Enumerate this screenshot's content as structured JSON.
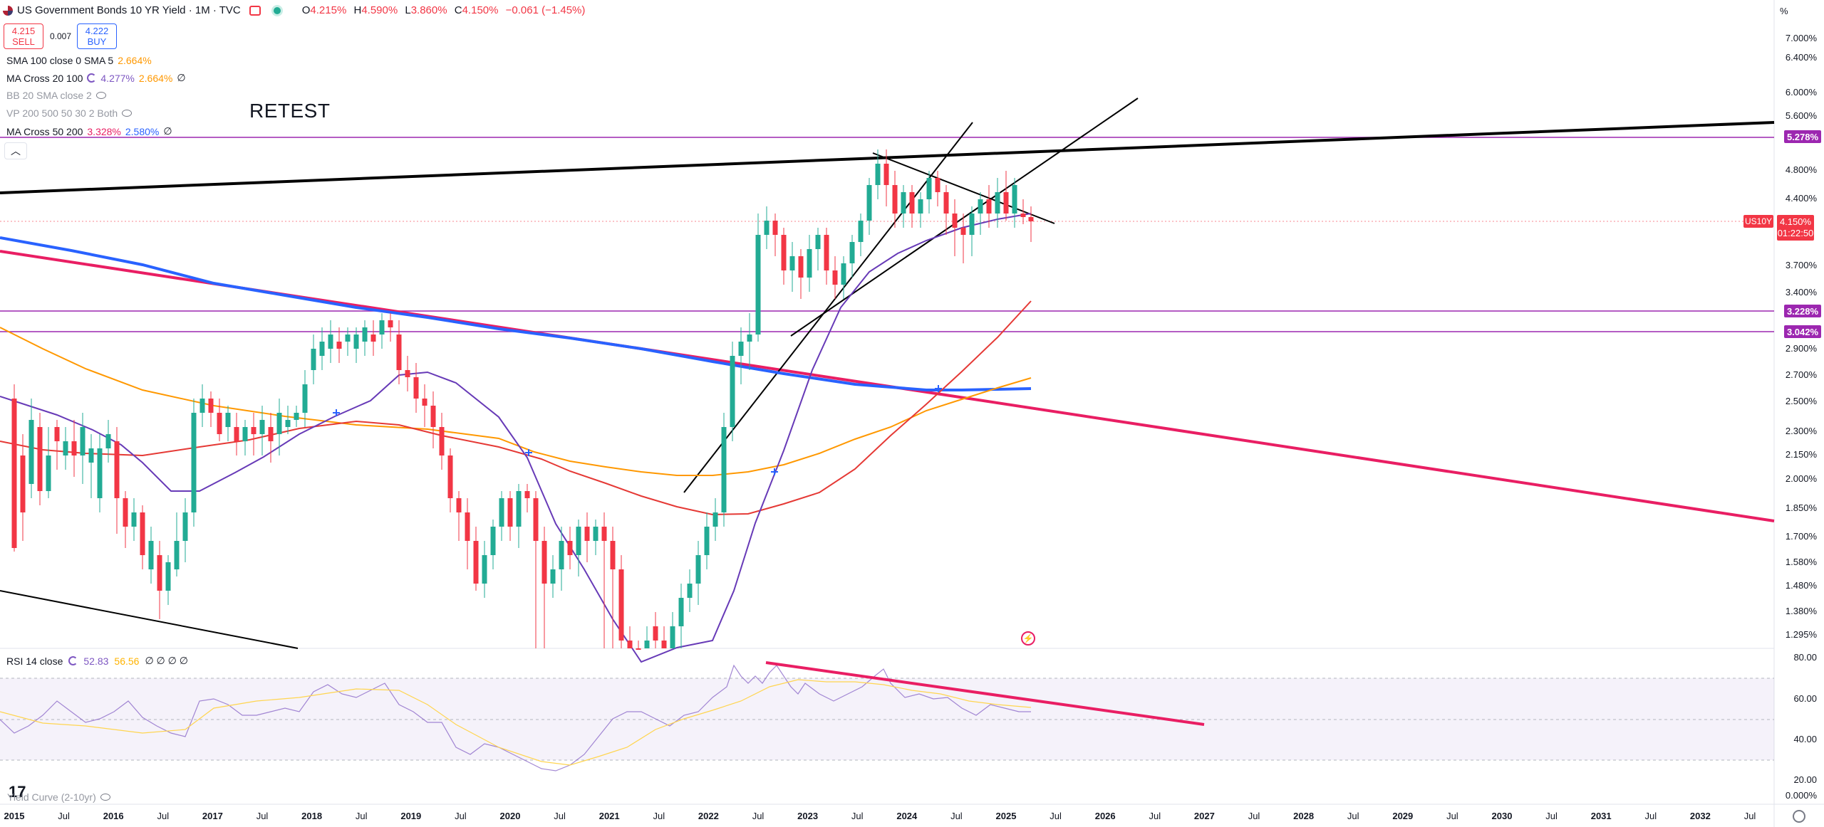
{
  "header": {
    "title": "US Government Bonds 10 YR Yield · 1M · TVC",
    "ohlc": {
      "o_label": "O",
      "o": "4.215%",
      "h_label": "H",
      "h": "4.590%",
      "l_label": "L",
      "l": "3.860%",
      "c_label": "C",
      "c": "4.150%",
      "change": "−0.061 (−1.45%)"
    }
  },
  "trade": {
    "sell_price": "4.215",
    "sell_label": "SELL",
    "spread": "0.007",
    "buy_price": "4.222",
    "buy_label": "BUY"
  },
  "indicators": [
    {
      "name": "SMA 100 close 0 SMA 5",
      "v1": "2.664%",
      "v2": ""
    },
    {
      "name": "MA Cross 20 100",
      "v1": "4.277%",
      "v2": "2.664%",
      "v3": "∅"
    },
    {
      "name": "BB 20 SMA close 2",
      "v1": "",
      "v2": ""
    },
    {
      "name": "VP 200 500 50 30 2 Both",
      "v1": "",
      "v2": ""
    },
    {
      "name": "MA Cross 50 200",
      "v1": "3.328%",
      "v2": "2.580%",
      "v3": "∅"
    }
  ],
  "annotation_text": "RETEST",
  "price_axis": {
    "unit": "%",
    "ticks": [
      "7.000%",
      "6.400%",
      "6.000%",
      "5.600%",
      "4.800%",
      "4.400%",
      "3.700%",
      "3.400%",
      "2.900%",
      "2.700%",
      "2.500%",
      "2.300%",
      "2.150%",
      "2.000%",
      "1.850%",
      "1.700%",
      "1.580%",
      "1.480%",
      "1.380%",
      "1.295%"
    ],
    "tags": [
      {
        "value": "5.278%",
        "color": "#9c27b0"
      },
      {
        "value": "3.228%",
        "color": "#9c27b0"
      },
      {
        "value": "3.042%",
        "color": "#9c27b0"
      }
    ],
    "last_symbol": "US10Y",
    "last_price": "4.150%",
    "countdown": "01:22:50"
  },
  "rsi": {
    "label": "RSI 14 close",
    "value": "52.83",
    "ma": "56.56",
    "rest": "∅ ∅ ∅ ∅",
    "ticks": [
      "80.00",
      "60.00",
      "40.00",
      "20.00"
    ]
  },
  "yield_curve": {
    "label": "Yield Curve (2-10yr)",
    "tick": "0.000%"
  },
  "time_axis": {
    "labels": [
      {
        "t": "2015",
        "year": true
      },
      {
        "t": "Jul",
        "year": false
      },
      {
        "t": "2016",
        "year": true
      },
      {
        "t": "Jul",
        "year": false
      },
      {
        "t": "2017",
        "year": true
      },
      {
        "t": "Jul",
        "year": false
      },
      {
        "t": "2018",
        "year": true
      },
      {
        "t": "Jul",
        "year": false
      },
      {
        "t": "2019",
        "year": true
      },
      {
        "t": "Jul",
        "year": false
      },
      {
        "t": "2020",
        "year": true
      },
      {
        "t": "Jul",
        "year": false
      },
      {
        "t": "2021",
        "year": true
      },
      {
        "t": "Jul",
        "year": false
      },
      {
        "t": "2022",
        "year": true
      },
      {
        "t": "Jul",
        "year": false
      },
      {
        "t": "2023",
        "year": true
      },
      {
        "t": "Jul",
        "year": false
      },
      {
        "t": "2024",
        "year": true
      },
      {
        "t": "Jul",
        "year": false
      },
      {
        "t": "2025",
        "year": true
      },
      {
        "t": "Jul",
        "year": false
      },
      {
        "t": "2026",
        "year": true
      },
      {
        "t": "Jul",
        "year": false
      },
      {
        "t": "2027",
        "year": true
      },
      {
        "t": "Jul",
        "year": false
      },
      {
        "t": "2028",
        "year": true
      },
      {
        "t": "Jul",
        "year": false
      },
      {
        "t": "2029",
        "year": true
      },
      {
        "t": "Jul",
        "year": false
      },
      {
        "t": "2030",
        "year": true
      },
      {
        "t": "Jul",
        "year": false
      },
      {
        "t": "2031",
        "year": true
      },
      {
        "t": "Jul",
        "year": false
      },
      {
        "t": "2032",
        "year": true
      },
      {
        "t": "Jul",
        "year": false
      }
    ]
  },
  "colors": {
    "up": "#22ab94",
    "down": "#f23645",
    "sma100": "#ff9800",
    "ma20": "#7e57c2",
    "ma50": "#e91e63",
    "ma200": "#2962ff",
    "trend_pink": "#e91e63",
    "hline": "#9c27b0"
  },
  "icons": [
    "us-flag-icon",
    "market-status-icon",
    "eye-icon",
    "settings-icon",
    "lightning-icon",
    "tradingview-logo"
  ]
}
